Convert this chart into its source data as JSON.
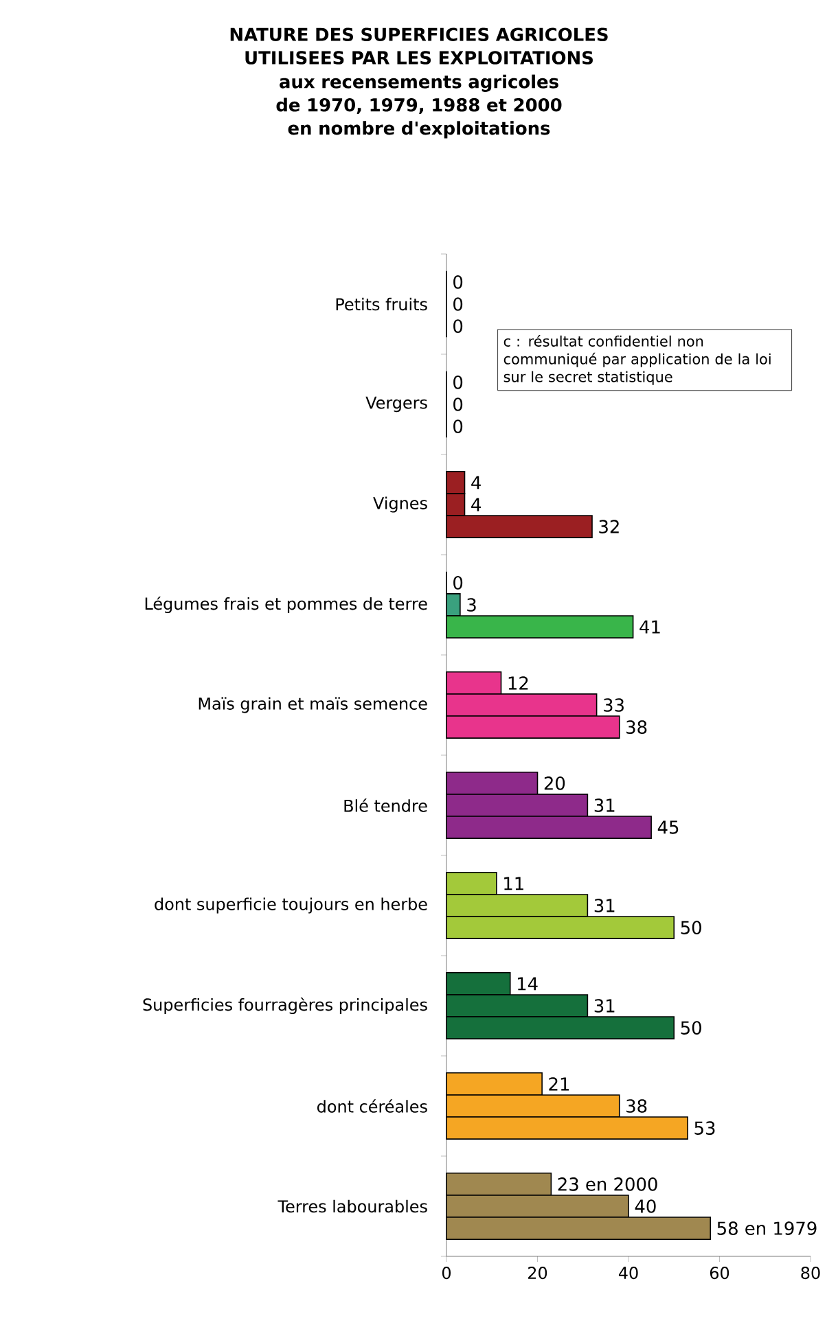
{
  "chart_data": {
    "type": "bar",
    "orientation": "horizontal",
    "title": "NATURE DES SUPERFICIES AGRICOLES UTILISEES PAR LES EXPLOITATIONS",
    "subtitle": "aux recensements agricoles de 1970, 1979, 1988 et 2000 en nombre d'exploitations",
    "categories": [
      "Petits fruits",
      "Vergers",
      "Vignes",
      "Légumes frais et pommes de terre",
      "Maïs grain et maïs semence",
      "Blé tendre",
      "dont superficie toujours en herbe",
      "Superficies fourragères principales",
      "dont céréales",
      "Terres labourables"
    ],
    "series": [
      {
        "colors": [
          "#999999",
          "#999999",
          "#9b1f22",
          "#3aa17e",
          "#e8348c",
          "#8e2a8a",
          "#a3c93a",
          "#15703c",
          "#f5a623",
          "#a08850"
        ],
        "values": [
          0,
          0,
          4,
          0,
          12,
          20,
          11,
          14,
          21,
          23
        ],
        "value_labels": [
          "0",
          "0",
          "4",
          "0",
          "12",
          "20",
          "11",
          "14",
          "21",
          "23 en 2000"
        ]
      },
      {
        "colors": [
          "#999999",
          "#999999",
          "#9b1f22",
          "#3aa17e",
          "#e8348c",
          "#8e2a8a",
          "#a3c93a",
          "#15703c",
          "#f5a623",
          "#a08850"
        ],
        "values": [
          0,
          0,
          4,
          3,
          33,
          31,
          31,
          31,
          38,
          40
        ],
        "value_labels": [
          "0",
          "0",
          "4",
          "3",
          "33",
          "31",
          "31",
          "31",
          "38",
          "40"
        ]
      },
      {
        "colors": [
          "#999999",
          "#999999",
          "#9b1f22",
          "#39b54a",
          "#e8348c",
          "#8e2a8a",
          "#a3c93a",
          "#15703c",
          "#f5a623",
          "#a08850"
        ],
        "values": [
          0,
          0,
          32,
          41,
          38,
          45,
          50,
          50,
          53,
          58
        ],
        "value_labels": [
          "0",
          "0",
          "32",
          "41",
          "38",
          "45",
          "50",
          "50",
          "53",
          "58 en 1979"
        ]
      }
    ],
    "xlim": [
      0,
      80
    ],
    "xticks": [
      0,
      20,
      40,
      60,
      80
    ],
    "annotations": [
      "c : résultat confidentiel non communiqué par application de la loi sur le secret statistique"
    ]
  }
}
